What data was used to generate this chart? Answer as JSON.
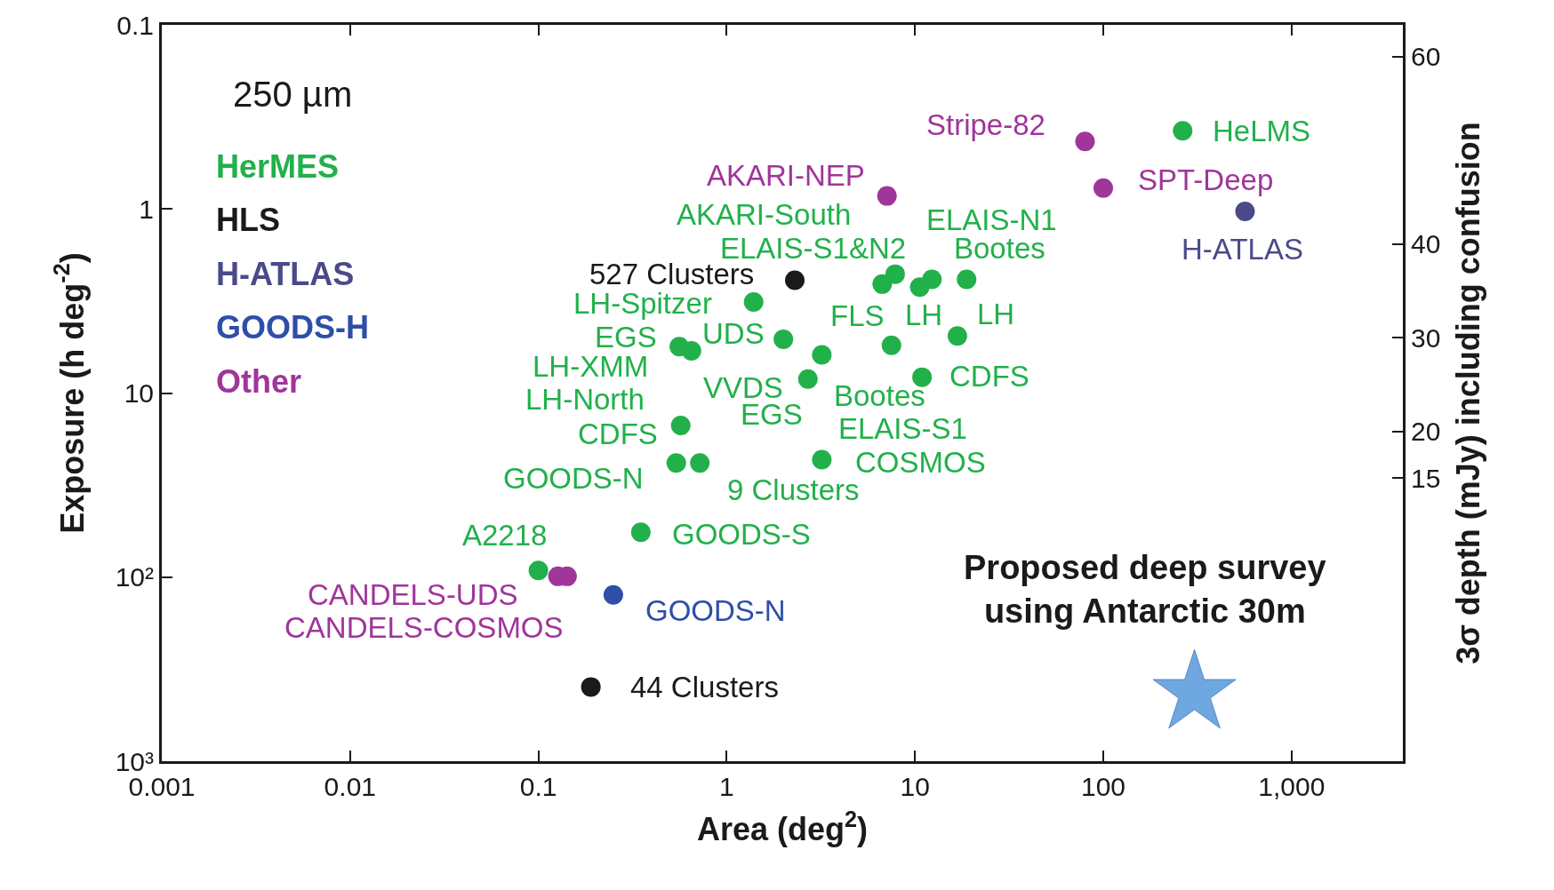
{
  "chart_data": {
    "type": "scatter",
    "xlabel": "Area (deg$^{2}$)",
    "ylabel": "Exposure (h deg$^{-2}$)",
    "y2label": "3σ depth (mJy) including confusion",
    "xlim": [
      0.001,
      3900
    ],
    "ylim": [
      1000,
      0.1
    ],
    "y2lim": [
      -15.2,
      63.4
    ],
    "xticks": [
      0.001,
      0.01,
      0.1,
      1,
      10,
      100,
      {
        "value": 1000,
        "label": "1,000"
      }
    ],
    "yticks": [
      0.1,
      1,
      10,
      {
        "value": 100,
        "label": "10²"
      },
      {
        "value": 1000,
        "label": "10³"
      }
    ],
    "y2ticks": [
      60,
      40,
      30,
      20,
      15
    ],
    "log": "xy",
    "legend": "top left",
    "marker": "circle",
    "series": [
      {
        "name": "HerMES",
        "color": "#22b04b",
        "x": [
          264,
          6.7,
          7.85,
          10.6,
          12.3,
          18.8,
          1.39,
          2.0,
          0.56,
          0.65,
          3.2,
          2.7,
          7.5,
          16.8,
          10.9,
          0.57,
          0.54,
          0.72,
          3.2,
          0.35,
          0.1
        ],
        "values": [
          0.376,
          2.56,
          2.26,
          2.66,
          2.41,
          2.41,
          3.2,
          5.1,
          5.6,
          5.9,
          6.2,
          8.4,
          5.5,
          4.9,
          8.2,
          15,
          24,
          24,
          23,
          57,
          92
        ]
      },
      {
        "name": "HLS",
        "color": "#1a1a1a",
        "x": [
          2.3,
          0.19
        ],
        "values": [
          2.44,
          395
        ]
      },
      {
        "name": "H-ATLAS",
        "color": "#4a4a8a",
        "x": [
          566
        ],
        "values": [
          1.03
        ]
      },
      {
        "name": "GOODS-H",
        "color": "#2e4fa8",
        "x": [
          0.25
        ],
        "values": [
          125
        ]
      },
      {
        "name": "Other",
        "color": "#a0359a",
        "x": [
          80,
          100,
          7.1,
          0.127,
          0.142
        ],
        "values": [
          0.43,
          0.77,
          0.85,
          99,
          99
        ]
      },
      {
        "color": "#6fa8e0",
        "marker": "star",
        "x": [
          305
        ],
        "values": [
          426
        ]
      }
    ],
    "annotations": [
      "250 µm",
      "Proposed deep survey\nusing Antarctic 30m",
      {
        "text": "Stripe-82",
        "x": 80,
        "y": 0.43
      },
      {
        "text": "HeLMS",
        "x": 264,
        "y": 0.376
      },
      {
        "text": "SPT-Deep",
        "x": 100,
        "y": 0.77
      },
      {
        "text": "AKARI-NEP",
        "x": 7.1,
        "y": 0.85
      },
      {
        "text": "AKARI-South",
        "x": 7.85,
        "y": 2.26
      },
      {
        "text": "ELAIS-N1",
        "x": 12.3,
        "y": 2.41
      },
      {
        "text": "ELAIS-S1&N2",
        "x": 6.7,
        "y": 2.56
      },
      {
        "text": "Bootes",
        "x": 18.8,
        "y": 2.41
      },
      {
        "text": "H-ATLAS",
        "x": 566,
        "y": 1.03
      },
      {
        "text": "527 Clusters",
        "x": 2.3,
        "y": 2.44
      },
      {
        "text": "LH-Spitzer",
        "x": 1.39,
        "y": 3.2
      },
      {
        "text": "FLS",
        "x": 7.5,
        "y": 5.5
      },
      {
        "text": "LH",
        "x": 10.6,
        "y": 2.66
      },
      {
        "text": "LH",
        "x": 16.8,
        "y": 4.9
      },
      {
        "text": "EGS",
        "x": 0.56,
        "y": 5.6
      },
      {
        "text": "UDS",
        "x": 2.0,
        "y": 5.1
      },
      {
        "text": "LH-XMM",
        "x": 0.65,
        "y": 5.9
      },
      {
        "text": "VVDS",
        "x": 2.7,
        "y": 8.4
      },
      {
        "text": "CDFS",
        "x": 10.9,
        "y": 8.2
      },
      {
        "text": "Bootes",
        "x": 3.2,
        "y": 6.2
      },
      {
        "text": "LH-North",
        "x": 0.57,
        "y": 15
      },
      {
        "text": "EGS",
        "x": 2.7,
        "y": 8.4
      },
      {
        "text": "ELAIS-S1",
        "x": 3.2,
        "y": 23
      },
      {
        "text": "CDFS",
        "x": 0.57,
        "y": 15
      },
      {
        "text": "COSMOS",
        "x": 3.2,
        "y": 23
      },
      {
        "text": "GOODS-N",
        "x": 0.54,
        "y": 24
      },
      {
        "text": "9 Clusters",
        "x": 0.72,
        "y": 24
      },
      {
        "text": "A2218",
        "x": 0.1,
        "y": 92
      },
      {
        "text": "GOODS-S",
        "x": 0.35,
        "y": 57
      },
      {
        "text": "CANDELS-UDS",
        "x": 0.127,
        "y": 99
      },
      {
        "text": "GOODS-N",
        "x": 0.25,
        "y": 125
      },
      {
        "text": "CANDELS-COSMOS",
        "x": 0.142,
        "y": 99
      },
      {
        "text": "44 Clusters",
        "x": 0.19,
        "y": 395
      }
    ]
  }
}
